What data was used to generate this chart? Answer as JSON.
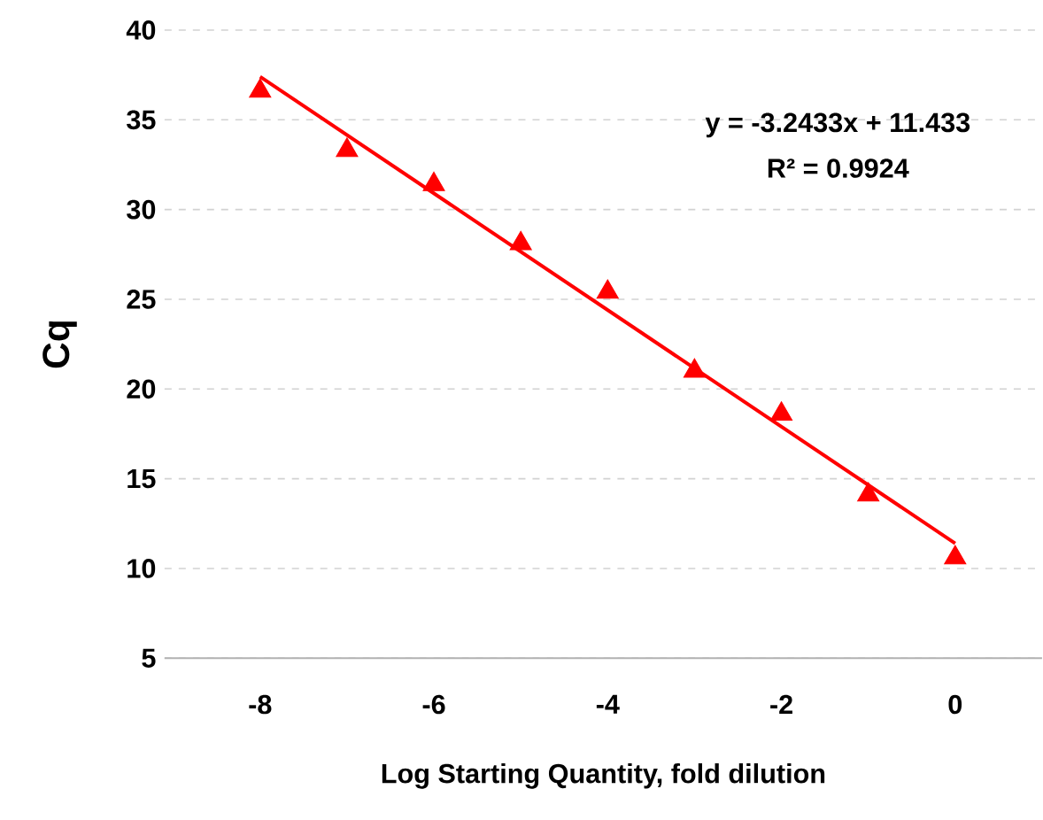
{
  "chart_data": {
    "type": "scatter",
    "xlabel": "Log Starting Quantity, fold dilution",
    "ylabel": "Cq",
    "annotations": [
      "y = -3.2433x + 11.433",
      "R² = 0.9924"
    ],
    "series": [
      {
        "color": "#ff0000",
        "marker": "triangle",
        "x": [
          -8,
          -7,
          -6,
          -5,
          -4,
          -3,
          -2,
          -1,
          0
        ],
        "values": [
          36.6,
          33.3,
          31.4,
          28.1,
          25.4,
          21.0,
          18.6,
          14.1,
          10.6
        ]
      },
      {
        "type": "line",
        "color": "#ff0000",
        "line_style": "solid",
        "x": [
          -8,
          0
        ],
        "values": [
          37.4,
          11.4
        ]
      }
    ],
    "xlim": [
      -9.1,
      1
    ],
    "ylim": [
      5,
      40
    ],
    "xticks": [
      -8,
      -6,
      -4,
      -2,
      0
    ],
    "yticks": [
      5,
      10,
      15,
      20,
      25,
      30,
      35,
      40
    ],
    "grid": "y"
  }
}
